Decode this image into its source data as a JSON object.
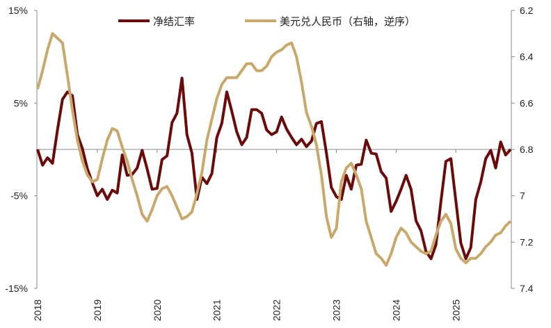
{
  "chart_data": {
    "type": "line",
    "title": "",
    "x": [
      "2018-01",
      "2018-02",
      "2018-03",
      "2018-04",
      "2018-05",
      "2018-06",
      "2018-07",
      "2018-08",
      "2018-09",
      "2018-10",
      "2018-11",
      "2018-12",
      "2019-01",
      "2019-02",
      "2019-03",
      "2019-04",
      "2019-05",
      "2019-06",
      "2019-07",
      "2019-08",
      "2019-09",
      "2019-10",
      "2019-11",
      "2019-12",
      "2020-01",
      "2020-02",
      "2020-03",
      "2020-04",
      "2020-05",
      "2020-06",
      "2020-07",
      "2020-08",
      "2020-09",
      "2020-10",
      "2020-11",
      "2020-12",
      "2021-01",
      "2021-02",
      "2021-03",
      "2021-04",
      "2021-05",
      "2021-06",
      "2021-07",
      "2021-08",
      "2021-09",
      "2021-10",
      "2021-11",
      "2021-12",
      "2022-01",
      "2022-02",
      "2022-03",
      "2022-04",
      "2022-05",
      "2022-06",
      "2022-07",
      "2022-08",
      "2022-09",
      "2022-10",
      "2022-11",
      "2022-12",
      "2023-01",
      "2023-02",
      "2023-03",
      "2023-04",
      "2023-05",
      "2023-06",
      "2023-07",
      "2023-08",
      "2023-09",
      "2023-10",
      "2023-11",
      "2023-12",
      "2024-01",
      "2024-02",
      "2024-03",
      "2024-04",
      "2024-05",
      "2024-06",
      "2024-07",
      "2024-08",
      "2024-09",
      "2024-10",
      "2024-11",
      "2024-12",
      "2025-01",
      "2025-02",
      "2025-03",
      "2025-04",
      "2025-05",
      "2025-06",
      "2025-07",
      "2025-08",
      "2025-09",
      "2025-10",
      "2025-11",
      "2025-12"
    ],
    "x_tick_labels": [
      "2018",
      "2019",
      "2020",
      "2021",
      "2022",
      "2023",
      "2024",
      "2025"
    ],
    "left_axis": {
      "ylim": [
        -15,
        15
      ],
      "ticks": [
        15,
        5,
        -5,
        -15
      ],
      "tick_labels": [
        "15%",
        "5%",
        "-5%",
        "-15%"
      ]
    },
    "right_axis": {
      "ylim": [
        6.2,
        7.4
      ],
      "inverted": true,
      "ticks": [
        6.2,
        6.4,
        6.6,
        6.8,
        7,
        7.2,
        7.4
      ],
      "tick_labels": [
        "6.2",
        "6.4",
        "6.6",
        "6.8",
        "7",
        "7.2",
        "7.4"
      ]
    },
    "legend_position": "top",
    "grid": false,
    "series": [
      {
        "name": "净结汇率",
        "axis": "left",
        "color": "#6b0a0a",
        "values": [
          0,
          -1.7,
          -0.9,
          -1.5,
          2.1,
          5.4,
          6.2,
          5.8,
          1.6,
          0.1,
          -2.1,
          -3.6,
          -5.0,
          -4.3,
          -5.4,
          -4.4,
          -4.7,
          -0.6,
          -2.8,
          -2.7,
          -2.0,
          -0.1,
          -2.1,
          -4.3,
          -4.2,
          -1.1,
          -0.7,
          2.9,
          3.9,
          7.7,
          1.6,
          -0.4,
          -5.4,
          -3.0,
          -3.7,
          -2.6,
          1.3,
          2.8,
          6.2,
          4.1,
          1.9,
          0.5,
          1.3,
          4.3,
          4.3,
          3.9,
          2.1,
          1.6,
          1.9,
          3.5,
          2.2,
          1.3,
          0.5,
          1.1,
          0.3,
          0.9,
          2.8,
          3.0,
          -0.4,
          -4.1,
          -5.1,
          -5.4,
          -2.8,
          -4.3,
          -1.7,
          -1.6,
          1.0,
          -0.4,
          -0.5,
          -2.4,
          -3.1,
          -6.7,
          -5.6,
          -4.3,
          -2.8,
          -4.3,
          -7.7,
          -8.8,
          -11.0,
          -11.8,
          -10.3,
          -5.6,
          -1.3,
          -1.0,
          -5.6,
          -10.1,
          -11.8,
          -10.6,
          -5.4,
          -3.5,
          -1.0,
          -0.1,
          -2.0,
          0.8,
          -0.6,
          0.0
        ]
      },
      {
        "name": "美元兑人民币（右轴，逆序）",
        "axis": "right",
        "color": "#c8a96b",
        "values": [
          6.54,
          6.46,
          6.37,
          6.3,
          6.32,
          6.34,
          6.48,
          6.63,
          6.76,
          6.85,
          6.91,
          6.94,
          6.93,
          6.84,
          6.76,
          6.71,
          6.72,
          6.79,
          6.85,
          6.93,
          7.0,
          7.08,
          7.11,
          7.06,
          7.0,
          6.97,
          6.96,
          7.0,
          7.05,
          7.1,
          7.09,
          7.07,
          6.99,
          6.9,
          6.76,
          6.67,
          6.58,
          6.52,
          6.49,
          6.49,
          6.49,
          6.46,
          6.43,
          6.43,
          6.46,
          6.46,
          6.44,
          6.4,
          6.38,
          6.37,
          6.35,
          6.34,
          6.4,
          6.51,
          6.64,
          6.7,
          6.78,
          6.91,
          7.09,
          7.18,
          7.14,
          6.94,
          6.88,
          6.86,
          6.91,
          6.97,
          7.11,
          7.18,
          7.25,
          7.27,
          7.3,
          7.25,
          7.18,
          7.14,
          7.16,
          7.2,
          7.22,
          7.24,
          7.25,
          7.24,
          7.17,
          7.11,
          7.08,
          7.12,
          7.23,
          7.27,
          7.29,
          7.27,
          7.27,
          7.25,
          7.22,
          7.2,
          7.17,
          7.16,
          7.13,
          7.11
        ]
      }
    ]
  }
}
